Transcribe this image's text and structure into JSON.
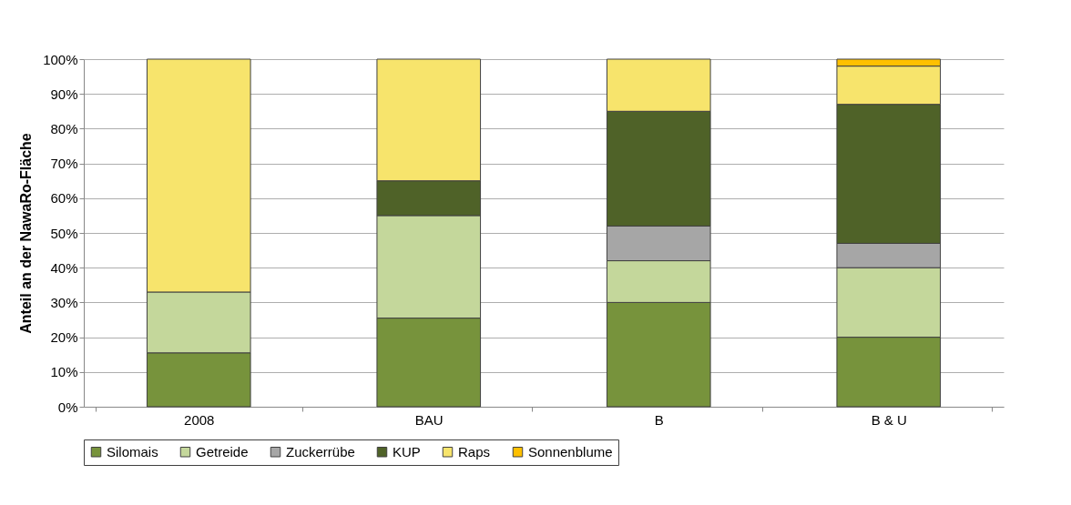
{
  "chart_data": {
    "type": "bar",
    "stacked": true,
    "ylabel": "Anteil an der NawaRo-Fläche",
    "categories": [
      "2008",
      "BAU",
      "B",
      "B & U"
    ],
    "series": [
      {
        "name": "Silomais",
        "color": "#77933c",
        "values": [
          15.5,
          25.5,
          30,
          20
        ]
      },
      {
        "name": "Getreide",
        "color": "#c4d79b",
        "values": [
          17.5,
          29.5,
          12,
          20
        ]
      },
      {
        "name": "Zuckerrübe",
        "color": "#a6a6a6",
        "values": [
          null,
          null,
          10,
          7
        ]
      },
      {
        "name": "KUP",
        "color": "#4f6228",
        "values": [
          null,
          10,
          33,
          40
        ]
      },
      {
        "name": "Raps",
        "color": "#f7e46c",
        "values": [
          67,
          35,
          15,
          11
        ]
      },
      {
        "name": "Sonnenblume",
        "color": "#ffc000",
        "values": [
          null,
          null,
          null,
          2
        ]
      }
    ],
    "ylim": [
      0,
      100
    ],
    "yticks": [
      {
        "value": 0,
        "label": "0%"
      },
      {
        "value": 10,
        "label": "10%"
      },
      {
        "value": 20,
        "label": "20%"
      },
      {
        "value": 30,
        "label": "30%"
      },
      {
        "value": 40,
        "label": "40%"
      },
      {
        "value": 50,
        "label": "50%"
      },
      {
        "value": 60,
        "label": "60%"
      },
      {
        "value": 70,
        "label": "70%"
      },
      {
        "value": 80,
        "label": "80%"
      },
      {
        "value": 90,
        "label": "90%"
      },
      {
        "value": 100,
        "label": "100%"
      }
    ],
    "grid": "y",
    "legend": "bottom"
  }
}
